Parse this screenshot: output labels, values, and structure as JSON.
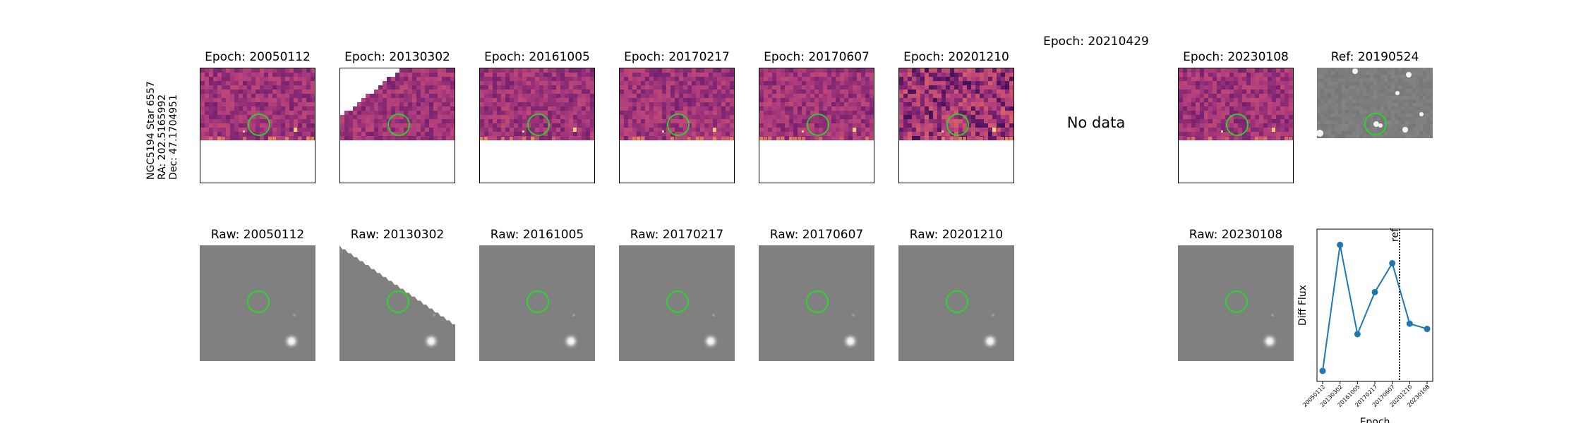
{
  "star_label": {
    "name": "NGC5194 Star 6557",
    "ra": "RA: 202.5165992",
    "dec": "Dec: 47.1704951"
  },
  "difference_panels": [
    {
      "title": "Epoch: 20050112",
      "coverage": "top-rect",
      "cmap": "magma-like"
    },
    {
      "title": "Epoch: 20130302",
      "coverage": "triangle",
      "cmap": "magma-like"
    },
    {
      "title": "Epoch: 20161005",
      "coverage": "top-rect",
      "cmap": "magma-like"
    },
    {
      "title": "Epoch: 20170217",
      "coverage": "top-rect",
      "cmap": "magma-like"
    },
    {
      "title": "Epoch: 20170607",
      "coverage": "top-rect",
      "cmap": "magma-like"
    },
    {
      "title": "Epoch: 20201210",
      "coverage": "top-rect",
      "cmap": "magma-like"
    },
    {
      "title": "Epoch: 20210429",
      "no_data_text": "No data"
    },
    {
      "title": "Epoch: 20230108",
      "coverage": "top-rect",
      "cmap": "magma-like"
    }
  ],
  "reference_panel": {
    "title": "Ref: 20190524",
    "cmap": "gray"
  },
  "raw_panels": [
    {
      "title": "Raw: 20050112",
      "coverage": "full"
    },
    {
      "title": "Raw: 20130302",
      "coverage": "diagonal"
    },
    {
      "title": "Raw: 20161005",
      "coverage": "full"
    },
    {
      "title": "Raw: 20170217",
      "coverage": "full"
    },
    {
      "title": "Raw: 20170607",
      "coverage": "full"
    },
    {
      "title": "Raw: 20201210",
      "coverage": "full"
    },
    {
      "title": "Raw: 20230108",
      "coverage": "full"
    }
  ],
  "marker_color": "#22dd22",
  "chart_data": {
    "type": "line",
    "title": "",
    "xlabel": "Epoch",
    "ylabel": "Diff Flux",
    "categories": [
      "20050112",
      "20130302",
      "20161005",
      "20170217",
      "20170607",
      "20201210",
      "20230108"
    ],
    "values": [
      0.0,
      0.96,
      0.28,
      0.6,
      0.82,
      0.36,
      0.32
    ],
    "series_color": "#1f77b4",
    "reference_line": {
      "label": "ref",
      "position_between": [
        "20170607",
        "20201210"
      ],
      "style": "dotted"
    },
    "ylim": [
      -0.08,
      1.08
    ],
    "y_ticks_visible": false
  }
}
